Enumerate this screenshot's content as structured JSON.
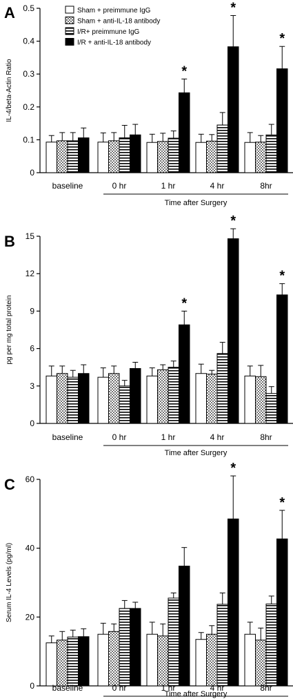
{
  "legend": [
    {
      "label": "Sham + preimmune IgG",
      "pattern": "white"
    },
    {
      "label": "Sham + anti-IL-18 antibody",
      "pattern": "dots"
    },
    {
      "label": "I/R+ preimmune IgG",
      "pattern": "hstripes"
    },
    {
      "label": "I/R + anti-IL-18 antibody",
      "pattern": "black"
    }
  ],
  "chart_data": [
    {
      "type": "bar",
      "panel_label": "A",
      "ylabel": "IL-4/beta-Actin Ratio",
      "xlabel": "Time after Surgery",
      "categories": [
        "baseline",
        "0 hr",
        "1 hr",
        "4 hr",
        "8hr"
      ],
      "ylim": [
        0,
        0.5
      ],
      "yticks": [
        0,
        0.1,
        0.2,
        0.3,
        0.4,
        0.5
      ],
      "ytick_labels": [
        "0",
        "0.1",
        "0.2",
        "0.3",
        "0.4",
        "0.5"
      ],
      "series": [
        {
          "name": "Sham + preimmune IgG",
          "values": [
            0.093,
            0.093,
            0.092,
            0.092,
            0.092
          ],
          "errors": [
            0.02,
            0.028,
            0.025,
            0.025,
            0.03
          ]
        },
        {
          "name": "Sham + anti-IL-18 antibody",
          "values": [
            0.097,
            0.097,
            0.095,
            0.096,
            0.093
          ],
          "errors": [
            0.025,
            0.025,
            0.025,
            0.02,
            0.02
          ]
        },
        {
          "name": "I/R+ preimmune IgG",
          "values": [
            0.097,
            0.106,
            0.105,
            0.145,
            0.115
          ],
          "errors": [
            0.025,
            0.038,
            0.022,
            0.038,
            0.032
          ]
        },
        {
          "name": "I/R + anti-IL-18 antibody",
          "values": [
            0.106,
            0.115,
            0.243,
            0.383,
            0.316
          ],
          "errors": [
            0.03,
            0.032,
            0.042,
            0.095,
            0.068
          ]
        }
      ],
      "significance": [
        {
          "category": "1 hr",
          "series": 3,
          "label": "*"
        },
        {
          "category": "4 hr",
          "series": 3,
          "label": "*"
        },
        {
          "category": "8hr",
          "series": 3,
          "label": "*"
        }
      ]
    },
    {
      "type": "bar",
      "panel_label": "B",
      "ylabel": "pg per mg total protein",
      "xlabel": "Time after Surgery",
      "categories": [
        "baseline",
        "0 hr",
        "1 hr",
        "4 hr",
        "8hr"
      ],
      "ylim": [
        0,
        15
      ],
      "yticks": [
        0,
        3,
        6,
        9,
        12,
        15
      ],
      "ytick_labels": [
        "0",
        "3",
        "6",
        "9",
        "12",
        "15"
      ],
      "series": [
        {
          "name": "Sham + preimmune IgG",
          "values": [
            3.8,
            3.7,
            3.8,
            4.0,
            3.8
          ],
          "errors": [
            0.8,
            0.75,
            0.65,
            0.75,
            0.8
          ]
        },
        {
          "name": "Sham + anti-IL-18 antibody",
          "values": [
            4.0,
            4.0,
            4.3,
            3.95,
            3.75
          ],
          "errors": [
            0.6,
            0.6,
            0.4,
            0.3,
            0.9
          ]
        },
        {
          "name": "I/R+ preimmune IgG",
          "values": [
            3.7,
            3.0,
            4.5,
            5.6,
            2.4
          ],
          "errors": [
            0.55,
            0.45,
            0.5,
            0.9,
            0.55
          ]
        },
        {
          "name": "I/R + anti-IL-18 antibody",
          "values": [
            4.0,
            4.4,
            7.9,
            14.8,
            10.3
          ],
          "errors": [
            0.7,
            0.5,
            1.1,
            0.8,
            0.9
          ]
        }
      ],
      "significance": [
        {
          "category": "1 hr",
          "series": 3,
          "label": "*"
        },
        {
          "category": "4 hr",
          "series": 3,
          "label": "*"
        },
        {
          "category": "8hr",
          "series": 3,
          "label": "*"
        }
      ]
    },
    {
      "type": "bar",
      "panel_label": "C",
      "ylabel": "Serum IL-4 Levels (pg/ml)",
      "xlabel": "Time after Surgery",
      "categories": [
        "baseline",
        "0 hr",
        "1 hr",
        "4 hr",
        "8hr"
      ],
      "ylim": [
        0,
        60
      ],
      "yticks": [
        0,
        20,
        40,
        60
      ],
      "ytick_labels": [
        "0",
        "20",
        "40",
        "60"
      ],
      "series": [
        {
          "name": "Sham + preimmune IgG",
          "values": [
            12.5,
            15.0,
            15.0,
            13.5,
            15.0
          ],
          "errors": [
            2.0,
            3.2,
            3.5,
            2.0,
            3.5
          ]
        },
        {
          "name": "Sham + anti-IL-18 antibody",
          "values": [
            13.3,
            15.8,
            14.5,
            15.0,
            13.3
          ],
          "errors": [
            2.5,
            2.2,
            3.5,
            2.5,
            3.5
          ]
        },
        {
          "name": "I/R+ preimmune IgG",
          "values": [
            14.2,
            22.5,
            25.5,
            23.7,
            23.8
          ],
          "errors": [
            2.0,
            2.3,
            1.5,
            3.3,
            2.3
          ]
        },
        {
          "name": "I/R + anti-IL-18 antibody",
          "values": [
            14.3,
            22.5,
            34.8,
            48.5,
            42.7
          ],
          "errors": [
            2.3,
            1.8,
            5.4,
            12.5,
            8.3
          ]
        }
      ],
      "significance": [
        {
          "category": "4 hr",
          "series": 3,
          "label": "*"
        },
        {
          "category": "8hr",
          "series": 3,
          "label": "*"
        }
      ]
    }
  ]
}
